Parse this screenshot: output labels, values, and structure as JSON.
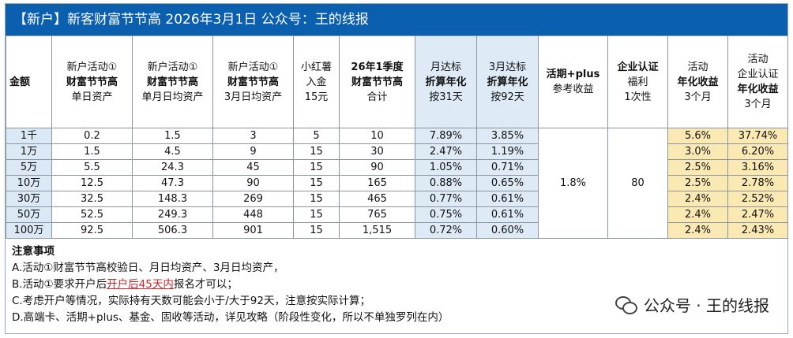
{
  "banner": {
    "title": "【新户】新客财富节节高  2026年3月1日  公众号：王的线报"
  },
  "header": {
    "amount": "金额",
    "c1": [
      "新户活动①",
      "财富节节高",
      "单日资产"
    ],
    "c2": [
      "新户活动①",
      "财富节节高",
      "单月日均资产"
    ],
    "c3": [
      "新户活动①",
      "财富节节高",
      "3月日均资产"
    ],
    "c4": [
      "小红薯",
      "入金",
      "15元"
    ],
    "c5": [
      "26年1季度",
      "财富节节高",
      "合计"
    ],
    "c6": [
      "月达标",
      "折算年化",
      "按31天"
    ],
    "c7": [
      "3月达标",
      "折算年化",
      "按92天"
    ],
    "c8": [
      "活期+plus",
      "参考收益"
    ],
    "c9": [
      "企业认证",
      "福利",
      "1次性"
    ],
    "c10": [
      "活动",
      "年化收益",
      "3个月"
    ],
    "c11": [
      "活动",
      "企业认证",
      "年化收益",
      "3个月"
    ]
  },
  "rows": [
    {
      "amt": "1千",
      "c1": "0.2",
      "c2": "1.5",
      "c3": "3",
      "c4": "5",
      "c5": "10",
      "c6": "7.89%",
      "c7": "3.85%",
      "c10": "5.6%",
      "c11": "37.74%"
    },
    {
      "amt": "1万",
      "c1": "1.5",
      "c2": "4.5",
      "c3": "9",
      "c4": "15",
      "c5": "30",
      "c6": "2.47%",
      "c7": "1.19%",
      "c10": "3.0%",
      "c11": "6.20%"
    },
    {
      "amt": "5万",
      "c1": "5.5",
      "c2": "24.3",
      "c3": "45",
      "c4": "15",
      "c5": "90",
      "c6": "1.05%",
      "c7": "0.71%",
      "c10": "2.5%",
      "c11": "3.16%"
    },
    {
      "amt": "10万",
      "c1": "12.5",
      "c2": "47.3",
      "c3": "90",
      "c4": "15",
      "c5": "165",
      "c6": "0.88%",
      "c7": "0.65%",
      "c10": "2.5%",
      "c11": "2.78%"
    },
    {
      "amt": "30万",
      "c1": "32.5",
      "c2": "148.3",
      "c3": "269",
      "c4": "15",
      "c5": "465",
      "c6": "0.77%",
      "c7": "0.61%",
      "c10": "2.4%",
      "c11": "2.52%"
    },
    {
      "amt": "50万",
      "c1": "52.5",
      "c2": "249.3",
      "c3": "448",
      "c4": "15",
      "c5": "765",
      "c6": "0.75%",
      "c7": "0.61%",
      "c10": "2.4%",
      "c11": "2.47%"
    },
    {
      "amt": "100万",
      "c1": "92.5",
      "c2": "506.3",
      "c3": "901",
      "c4": "15",
      "c5": "1,515",
      "c6": "0.72%",
      "c7": "0.60%",
      "c10": "2.4%",
      "c11": "2.43%"
    }
  ],
  "merged": {
    "plus": "1.8%",
    "enterprise": "80"
  },
  "notes": {
    "title": "注意事项",
    "a": "A.活动①财富节节高校验日、月日均资产、3月日均资产，",
    "b_pre": "B.活动①要求开户后",
    "b_hl": "开户后45天内",
    "b_post": "报名才可以；",
    "c": "C.考虑开户等情况，实际持有天数可能会小于/大于92天，注意按实际计算；",
    "d": "D.高端卡、活期+plus、基金、固收等活动，详见攻略（阶段性变化，所以不单独罗列在内）"
  },
  "watermark": {
    "text": "公众号 · 王的线报",
    "icon": "wechat-icon"
  }
}
